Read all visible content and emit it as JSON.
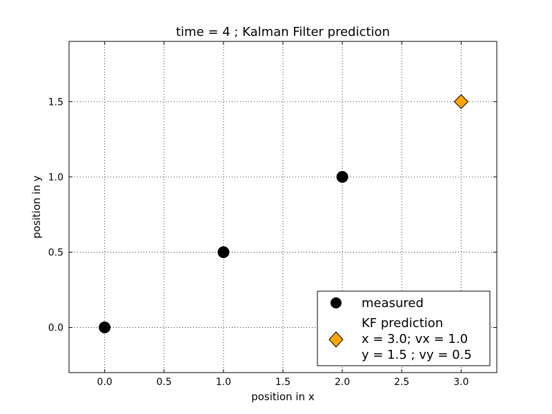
{
  "chart_data": {
    "type": "scatter",
    "title": "time = 4 ; Kalman Filter prediction",
    "xlabel": "position in x",
    "ylabel": "position in y",
    "xlim": [
      -0.3,
      3.3
    ],
    "ylim": [
      -0.3,
      1.9
    ],
    "xticks": [
      0.0,
      0.5,
      1.0,
      1.5,
      2.0,
      2.5,
      3.0
    ],
    "xtick_labels": [
      "0.0",
      "0.5",
      "1.0",
      "1.5",
      "2.0",
      "2.5",
      "3.0"
    ],
    "yticks": [
      0.0,
      0.5,
      1.0,
      1.5
    ],
    "ytick_labels": [
      "0.0",
      "0.5",
      "1.0",
      "1.5"
    ],
    "grid": true,
    "legend_position": "bottom-right",
    "series": [
      {
        "name": "measured",
        "marker": "circle",
        "color": "#000000",
        "points": [
          {
            "x": 0.0,
            "y": 0.0
          },
          {
            "x": 1.0,
            "y": 0.5
          },
          {
            "x": 2.0,
            "y": 1.0
          }
        ]
      },
      {
        "name": "KF prediction",
        "name_lines": [
          "KF prediction",
          "x = 3.0; vx = 1.0",
          "y = 1.5 ; vy = 0.5"
        ],
        "marker": "diamond",
        "color": "#ffa500",
        "points": [
          {
            "x": 3.0,
            "y": 1.5
          }
        ]
      }
    ]
  }
}
